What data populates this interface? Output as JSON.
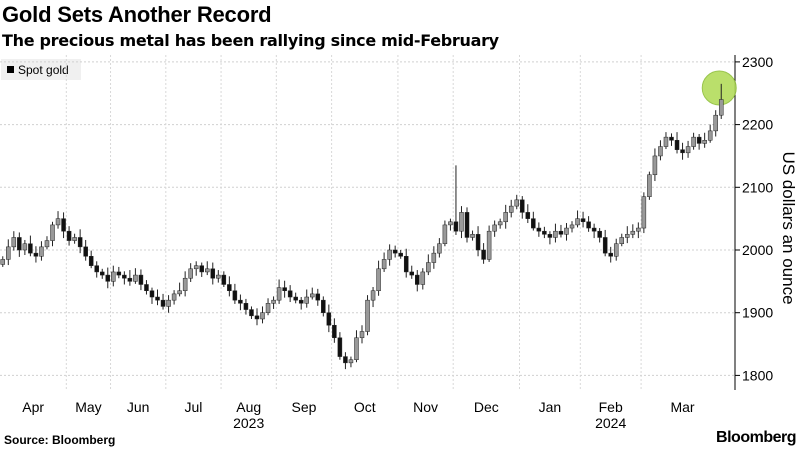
{
  "chart_data": {
    "type": "candlestick",
    "title": "Gold Sets Another Record",
    "subtitle": "The precious metal has been rallying since mid-February",
    "legend": [
      "Spot gold"
    ],
    "ylabel": "US dollars an ounce",
    "ylim": [
      1780,
      2310
    ],
    "yticks": [
      1800,
      1900,
      2000,
      2100,
      2200,
      2300
    ],
    "months": [
      "Apr",
      "May",
      "Jun",
      "Jul",
      "Aug",
      "Sep",
      "Oct",
      "Nov",
      "Dec",
      "Jan",
      "Feb",
      "Mar"
    ],
    "years": [
      {
        "label": "2023",
        "month": "Aug"
      },
      {
        "label": "2024",
        "month": "Feb"
      }
    ],
    "month_point_counts": [
      12,
      8,
      10,
      10,
      10,
      10,
      12,
      10,
      12,
      11,
      11,
      15
    ],
    "closes": [
      1985,
      2005,
      2020,
      2000,
      2010,
      1995,
      1990,
      2005,
      2015,
      2040,
      2050,
      2030,
      2015,
      2020,
      2005,
      1990,
      1975,
      1965,
      1960,
      1950,
      1965,
      1960,
      1955,
      1950,
      1960,
      1945,
      1935,
      1925,
      1920,
      1910,
      1920,
      1930,
      1935,
      1955,
      1970,
      1975,
      1965,
      1970,
      1955,
      1960,
      1945,
      1935,
      1920,
      1915,
      1905,
      1895,
      1890,
      1900,
      1915,
      1920,
      1940,
      1935,
      1925,
      1920,
      1915,
      1925,
      1930,
      1920,
      1900,
      1880,
      1860,
      1830,
      1820,
      1825,
      1860,
      1870,
      1920,
      1935,
      1970,
      1985,
      2000,
      1995,
      1990,
      1965,
      1960,
      1945,
      1965,
      1980,
      1995,
      2010,
      2040,
      2045,
      2030,
      2060,
      2020,
      2025,
      2000,
      1985,
      2030,
      2040,
      2045,
      2060,
      2070,
      2080,
      2060,
      2050,
      2035,
      2030,
      2025,
      2020,
      2030,
      2025,
      2035,
      2040,
      2050,
      2045,
      2035,
      2030,
      2020,
      1995,
      1990,
      2010,
      2020,
      2025,
      2030,
      2035,
      2085,
      2120,
      2150,
      2165,
      2180,
      2175,
      2160,
      2155,
      2165,
      2180,
      2170,
      2175,
      2190,
      2215,
      2240
    ],
    "spikes": [
      {
        "index": 82,
        "high": 2135
      },
      {
        "index": 130,
        "high": 2265
      }
    ],
    "highlight": {
      "index": 130,
      "color": "#b3dc5c"
    }
  },
  "footer": {
    "source": "Source: Bloomberg",
    "brand": "Bloomberg"
  }
}
